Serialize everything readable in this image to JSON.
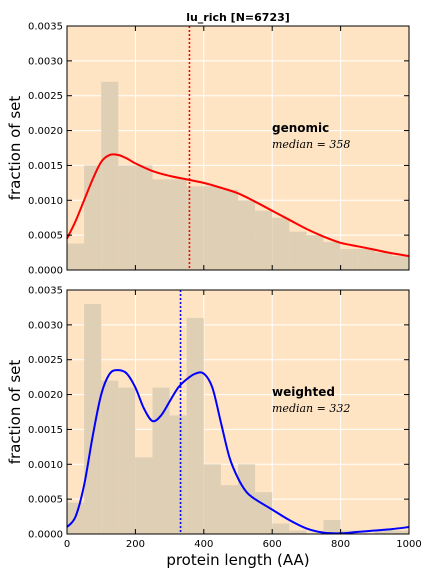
{
  "figure": {
    "title": "lu_rich [N=6723]",
    "xlabel": "protein length (AA)",
    "background": "#ffe4c4",
    "hist_color": "#dccdb4",
    "grid_color": "#ffffff"
  },
  "chart_data": [
    {
      "type": "area",
      "panel": "top",
      "title": "lu_rich [N=6723]",
      "ylabel": "fraction of set",
      "xlabel": "",
      "xlim": [
        0,
        1000
      ],
      "ylim": [
        0,
        0.0035
      ],
      "x_ticks": [
        0,
        200,
        400,
        600,
        800,
        1000
      ],
      "show_x_ticklabels": false,
      "y_ticks": [
        0,
        0.0005,
        0.001,
        0.0015,
        0.002,
        0.0025,
        0.003,
        0.0035
      ],
      "y_ticklabels": [
        "0.0000",
        "0.0005",
        "0.0010",
        "0.0015",
        "0.0020",
        "0.0025",
        "0.0030",
        "0.0035"
      ],
      "grid": true,
      "histogram": {
        "bin_edges": [
          0,
          50,
          100,
          150,
          200,
          250,
          300,
          350,
          400,
          450,
          500,
          550,
          600,
          650,
          700,
          750,
          800,
          850,
          900,
          950,
          1000
        ],
        "values": [
          0.00038,
          0.0015,
          0.0027,
          0.0015,
          0.0015,
          0.0013,
          0.0013,
          0.0012,
          0.0012,
          0.00115,
          0.001,
          0.00085,
          0.00075,
          0.00055,
          0.0005,
          0.0004,
          0.0003,
          0.0003,
          0.00025,
          0.0002
        ]
      },
      "curve": {
        "color": "#ff0000",
        "x": [
          0,
          25,
          50,
          75,
          100,
          125,
          150,
          175,
          200,
          250,
          300,
          350,
          400,
          450,
          500,
          550,
          600,
          650,
          700,
          750,
          800,
          850,
          900,
          950,
          1000
        ],
        "y": [
          0.00045,
          0.0007,
          0.001,
          0.0013,
          0.00155,
          0.00165,
          0.00165,
          0.0016,
          0.00153,
          0.00142,
          0.00135,
          0.0013,
          0.00125,
          0.00118,
          0.0011,
          0.00098,
          0.00085,
          0.00072,
          0.00059,
          0.00048,
          0.00039,
          0.00034,
          0.00029,
          0.00024,
          0.0002
        ]
      },
      "median": {
        "value": 358,
        "color": "#ff0000"
      },
      "annotation": {
        "label": "genomic",
        "median_text": "median = 358"
      }
    },
    {
      "type": "area",
      "panel": "bottom",
      "title": "",
      "ylabel": "fraction of set",
      "xlabel": "protein length (AA)",
      "xlim": [
        0,
        1000
      ],
      "ylim": [
        0,
        0.0035
      ],
      "x_ticks": [
        0,
        200,
        400,
        600,
        800,
        1000
      ],
      "x_ticklabels": [
        "0",
        "200",
        "400",
        "600",
        "800",
        "1000"
      ],
      "show_x_ticklabels": true,
      "y_ticks": [
        0,
        0.0005,
        0.001,
        0.0015,
        0.002,
        0.0025,
        0.003,
        0.0035
      ],
      "y_ticklabels": [
        "0.0000",
        "0.0005",
        "0.0010",
        "0.0015",
        "0.0020",
        "0.0025",
        "0.0030",
        "0.0035"
      ],
      "grid": true,
      "histogram": {
        "bin_edges": [
          0,
          50,
          100,
          150,
          200,
          250,
          300,
          350,
          400,
          450,
          500,
          550,
          600,
          650,
          700,
          750,
          800,
          850,
          900,
          950,
          1000
        ],
        "values": [
          0.00045,
          0.0033,
          0.0022,
          0.0021,
          0.0011,
          0.0021,
          0.0017,
          0.0031,
          0.001,
          0.0007,
          0.001,
          0.0006,
          0.00015,
          5e-05,
          0,
          0.0002,
          5e-05,
          0,
          5e-05,
          5e-05
        ]
      },
      "curve": {
        "color": "#0000ff",
        "x": [
          0,
          25,
          50,
          75,
          100,
          125,
          150,
          175,
          200,
          225,
          250,
          275,
          300,
          325,
          350,
          375,
          400,
          425,
          450,
          475,
          500,
          525,
          550,
          600,
          650,
          700,
          750,
          800,
          850,
          900,
          950,
          1000
        ],
        "y": [
          0.0001,
          0.00025,
          0.0007,
          0.0014,
          0.002,
          0.0023,
          0.00235,
          0.0023,
          0.0021,
          0.0018,
          0.00162,
          0.0017,
          0.0019,
          0.0021,
          0.00222,
          0.0023,
          0.0023,
          0.0021,
          0.0016,
          0.0011,
          0.0008,
          0.0006,
          0.0005,
          0.00035,
          0.0002,
          8e-05,
          2e-05,
          1e-05,
          3e-05,
          5e-05,
          7e-05,
          0.0001
        ]
      },
      "median": {
        "value": 332,
        "color": "#0000ff"
      },
      "annotation": {
        "label": "weighted",
        "median_text": "median = 332"
      }
    }
  ]
}
